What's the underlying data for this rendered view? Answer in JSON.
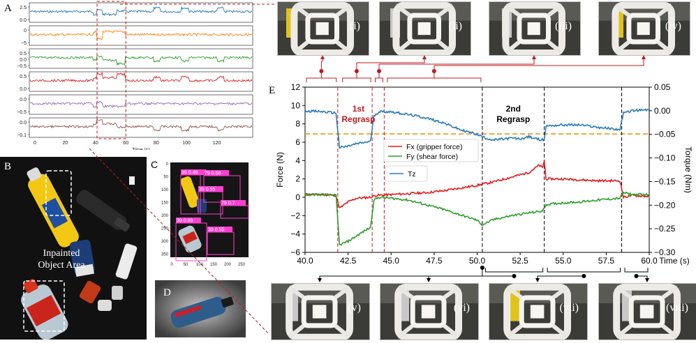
{
  "panel_labels": {
    "a": "A",
    "b": "B",
    "c": "C",
    "d": "D",
    "e": "E"
  },
  "colors": {
    "series": [
      "#1f77b4",
      "#ff7f0e",
      "#2ca02c",
      "#d62728",
      "#9467bd",
      "#8c564b"
    ],
    "fx": "#e41a1c",
    "fy": "#2ca02c",
    "tz": "#2b7bba",
    "threshold": "#f0a01e",
    "marker": "#c0181f"
  },
  "panel_a": {
    "xlabel": "Time (s)",
    "xticks": [
      "0",
      "20",
      "40",
      "60",
      "80",
      "100",
      "120"
    ],
    "rows": [
      {
        "ticks": [
          "2.5",
          "0.0"
        ]
      },
      {
        "ticks": [
          "0",
          "−5"
        ]
      },
      {
        "ticks": [
          "0.5",
          "0.0",
          "−0.5"
        ]
      },
      {
        "ticks": [
          "0.5",
          "0.0"
        ]
      },
      {
        "ticks": [
          "0.0",
          "−0.5"
        ]
      },
      {
        "ticks": [
          "0.0",
          "−0.1"
        ]
      }
    ]
  },
  "panel_b": {
    "caption_line1": "Inpainted",
    "caption_line2": "Object Area"
  },
  "panel_c": {
    "detections": [
      {
        "label": "39  0.46"
      },
      {
        "label": "79  0.58"
      },
      {
        "label": "39  0.55"
      },
      {
        "label": "79  0.7"
      },
      {
        "label": "39  0.89"
      },
      {
        "label": "39  0.55"
      }
    ],
    "xticks": [
      "0",
      "50",
      "100",
      "150",
      "200",
      "250"
    ],
    "yticks": [
      "0",
      "50",
      "100",
      "150",
      "200",
      "250",
      "300",
      "350"
    ]
  },
  "photos_top": [
    "(i)",
    "(ii)",
    "(iii)",
    "(iv)"
  ],
  "photos_bottom": [
    "(v)",
    "(vi)",
    "(vii)",
    "(viii)"
  ],
  "chart_data": {
    "type": "line",
    "panel": "E",
    "xlabel": "Time (s)",
    "ylabel_left": "Force (N)",
    "ylabel_right": "Torque (Nm)",
    "xlim": [
      40.0,
      60.0
    ],
    "ylim_left": [
      -6,
      12
    ],
    "ylim_right": [
      -0.3,
      0.05
    ],
    "xticks": [
      "40.0",
      "42.5",
      "45.0",
      "47.5",
      "50.0",
      "52.5",
      "55.0",
      "57.5",
      "60.0"
    ],
    "yticks_left": [
      "12",
      "10",
      "8",
      "6",
      "4",
      "2",
      "0",
      "−2",
      "−4",
      "−6"
    ],
    "yticks_right": [
      "0.05",
      "0.00",
      "−0.05",
      "−0.10",
      "−0.15",
      "−0.20",
      "−0.25",
      "−0.30"
    ],
    "threshold_force": 6.9,
    "event_lines": [
      41.9,
      43.9,
      44.6,
      50.3,
      53.9,
      58.4
    ],
    "annotations": [
      {
        "line1": "1st",
        "line2": "Regrasp",
        "color": "#c0181f",
        "x": 43.1
      },
      {
        "line1": "2nd",
        "line2": "Regrasp",
        "color": "#000000",
        "x": 52.1
      }
    ],
    "series": [
      {
        "name": "Fx (gripper force)",
        "axis": "left",
        "color": "#e41a1c",
        "x": [
          40,
          41,
          41.8,
          42.0,
          42.5,
          43,
          43.8,
          44.1,
          45,
          46,
          47,
          48,
          49,
          50,
          51,
          52,
          53,
          53.6,
          53.8,
          53.9,
          54,
          55,
          56,
          57,
          58.3,
          58.5,
          59,
          60
        ],
        "y": [
          0.3,
          0.3,
          0.2,
          -1.2,
          -0.5,
          -0.1,
          0.0,
          0.2,
          0.3,
          0.4,
          0.5,
          0.7,
          1.0,
          1.3,
          1.7,
          2.2,
          2.7,
          3.5,
          3.2,
          4.0,
          2.0,
          2.0,
          1.9,
          1.8,
          1.8,
          0.0,
          0.2,
          0.1
        ]
      },
      {
        "name": "Fy (shear force)",
        "axis": "left",
        "color": "#2ca02c",
        "x": [
          40,
          41,
          41.8,
          42.0,
          42.5,
          43,
          43.5,
          43.8,
          44.0,
          44.3,
          45,
          46,
          47,
          48,
          49,
          50,
          50.3,
          51,
          52,
          53,
          53.8,
          54,
          55,
          56,
          57,
          58.3,
          58.5,
          59,
          60
        ],
        "y": [
          0.3,
          0.3,
          0.2,
          -5.2,
          -4.8,
          -4.2,
          -3.6,
          -3.3,
          -0.3,
          0.0,
          -0.1,
          -0.3,
          -0.8,
          -1.3,
          -1.9,
          -2.5,
          -3.0,
          -2.4,
          -2.0,
          -1.7,
          -1.5,
          -0.8,
          -0.6,
          -0.5,
          -0.3,
          -0.1,
          0.5,
          0.3,
          0.3
        ]
      },
      {
        "name": "Tz",
        "axis": "right",
        "color": "#2b7bba",
        "x": [
          40,
          41,
          41.8,
          42.0,
          42.5,
          43,
          43.8,
          44.0,
          44.3,
          45,
          46,
          47,
          48,
          49,
          50,
          50.5,
          51,
          51.5,
          52,
          52.5,
          53,
          53.5,
          53.9,
          54,
          55,
          56,
          57,
          58.3,
          58.5,
          59,
          60
        ],
        "y": [
          0.0,
          -0.002,
          -0.005,
          -0.078,
          -0.075,
          -0.07,
          -0.065,
          -0.01,
          -0.002,
          -0.002,
          -0.008,
          -0.015,
          -0.025,
          -0.04,
          -0.05,
          -0.058,
          -0.062,
          -0.06,
          -0.058,
          -0.06,
          -0.055,
          -0.06,
          -0.062,
          -0.032,
          -0.03,
          -0.03,
          -0.035,
          -0.04,
          -0.005,
          0.0,
          0.002
        ]
      }
    ],
    "legend": [
      "Fx (gripper force)",
      "Fy (shear force)",
      "Tz"
    ]
  }
}
